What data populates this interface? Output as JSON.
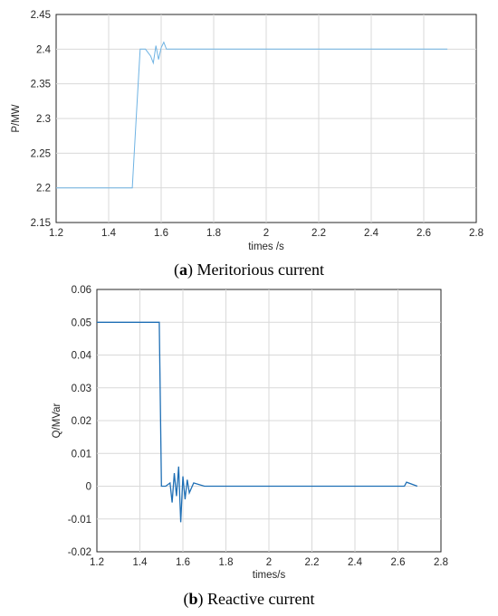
{
  "chart_data": [
    {
      "type": "line",
      "panel_label": "a",
      "caption": "Meritorious current",
      "xlabel": "times /s",
      "ylabel": "P/MW",
      "xlim": [
        1.2,
        2.8
      ],
      "ylim": [
        2.15,
        2.45
      ],
      "xticks": [
        "1.2",
        "1.4",
        "1.6",
        "1.8",
        "2",
        "2.2",
        "2.4",
        "2.6",
        "2.8"
      ],
      "yticks": [
        "2.15",
        "2.2",
        "2.25",
        "2.3",
        "2.35",
        "2.4",
        "2.45"
      ],
      "grid": true,
      "color": "#6fb3e3",
      "x": [
        1.2,
        1.3,
        1.4,
        1.49,
        1.505,
        1.52,
        1.54,
        1.56,
        1.57,
        1.58,
        1.59,
        1.6,
        1.61,
        1.62,
        1.65,
        1.7,
        2.0,
        2.3,
        2.69
      ],
      "y": [
        2.2,
        2.2,
        2.2,
        2.2,
        2.3,
        2.4,
        2.4,
        2.39,
        2.38,
        2.405,
        2.385,
        2.402,
        2.41,
        2.4,
        2.4,
        2.4,
        2.4,
        2.4,
        2.4
      ]
    },
    {
      "type": "line",
      "panel_label": "b",
      "caption": "Reactive current",
      "xlabel": "times/s",
      "ylabel": "Q/MVar",
      "xlim": [
        1.2,
        2.8
      ],
      "ylim": [
        -0.02,
        0.06
      ],
      "xticks": [
        "1.2",
        "1.4",
        "1.6",
        "1.8",
        "2",
        "2.2",
        "2.4",
        "2.6",
        "2.8"
      ],
      "yticks": [
        "-0.02",
        "-0.01",
        "0",
        "0.01",
        "0.02",
        "0.03",
        "0.04",
        "0.05",
        "0.06"
      ],
      "grid": true,
      "color": "#1f6fb5",
      "x": [
        1.2,
        1.3,
        1.4,
        1.49,
        1.5,
        1.52,
        1.54,
        1.55,
        1.56,
        1.57,
        1.58,
        1.59,
        1.6,
        1.61,
        1.62,
        1.63,
        1.65,
        1.7,
        2.0,
        2.4,
        2.63,
        2.64,
        2.69
      ],
      "y": [
        0.05,
        0.05,
        0.05,
        0.05,
        0.0,
        0.0,
        0.001,
        -0.005,
        0.004,
        -0.003,
        0.006,
        -0.011,
        0.003,
        -0.004,
        0.002,
        -0.002,
        0.001,
        0.0,
        0.0,
        0.0,
        0.0,
        0.0012,
        0.0
      ]
    }
  ]
}
